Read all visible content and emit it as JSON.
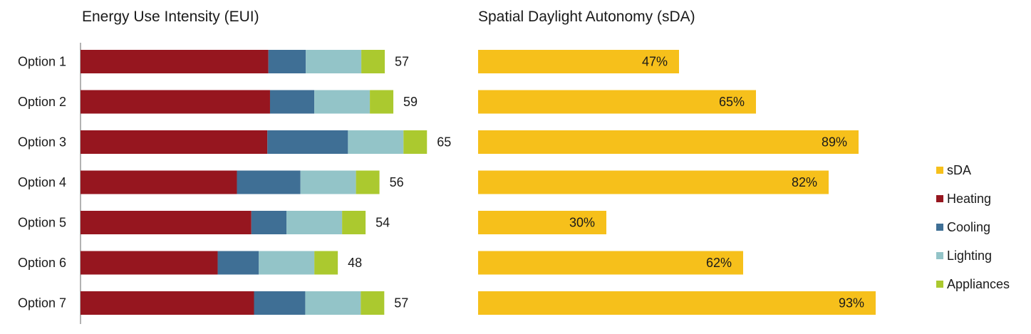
{
  "colors": {
    "heating": "#96161f",
    "cooling": "#3f6f95",
    "lighting": "#93c4c8",
    "appliances": "#abc92f",
    "sda": "#f6c01b",
    "axis": "#7f7f7f"
  },
  "legend": [
    {
      "key": "sda",
      "label": "sDA"
    },
    {
      "key": "heating",
      "label": "Heating"
    },
    {
      "key": "cooling",
      "label": "Cooling"
    },
    {
      "key": "lighting",
      "label": "Lighting"
    },
    {
      "key": "appliances",
      "label": "Appliances"
    }
  ],
  "chart_data": [
    {
      "type": "bar",
      "orientation": "horizontal",
      "stacked": true,
      "title": "Energy Use Intensity (EUI)",
      "categories": [
        "Option 1",
        "Option 2",
        "Option 3",
        "Option 4",
        "Option 5",
        "Option 6",
        "Option 7"
      ],
      "series": [
        {
          "name": "Heating",
          "color_key": "heating",
          "values": [
            35.2,
            35.5,
            35.0,
            29.3,
            32.0,
            25.7,
            32.5
          ]
        },
        {
          "name": "Cooling",
          "color_key": "cooling",
          "values": [
            7.0,
            8.3,
            15.1,
            11.9,
            6.6,
            7.7,
            9.6
          ]
        },
        {
          "name": "Lighting",
          "color_key": "lighting",
          "values": [
            10.4,
            10.4,
            10.4,
            10.4,
            10.4,
            10.4,
            10.4
          ]
        },
        {
          "name": "Appliances",
          "color_key": "appliances",
          "values": [
            4.4,
            4.4,
            4.4,
            4.4,
            4.4,
            4.4,
            4.4
          ]
        }
      ],
      "totals": [
        "57",
        "59",
        "65",
        "56",
        "54",
        "48",
        "57"
      ],
      "xlim": [
        0,
        65
      ]
    },
    {
      "type": "bar",
      "orientation": "horizontal",
      "title": "Spatial Daylight Autonomy (sDA)",
      "categories": [
        "Option 1",
        "Option 2",
        "Option 3",
        "Option 4",
        "Option 5",
        "Option 6",
        "Option 7"
      ],
      "series": [
        {
          "name": "sDA",
          "color_key": "sda",
          "values": [
            47,
            65,
            89,
            82,
            30,
            62,
            93
          ]
        }
      ],
      "labels": [
        "47%",
        "65%",
        "89%",
        "82%",
        "30%",
        "62%",
        "93%"
      ],
      "xlim": [
        0,
        100
      ]
    }
  ]
}
